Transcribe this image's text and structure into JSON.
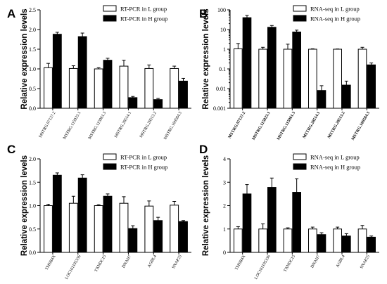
{
  "chart_data": [
    {
      "panel": "A",
      "type": "bar",
      "ylabel": "Relative expression levels",
      "ylim": [
        0,
        2.5
      ],
      "yticks": [
        "0.0",
        "0.5",
        "1.0",
        "1.5",
        "2.0",
        "2.5"
      ],
      "scale": "linear",
      "categories": [
        "MSTRG.97137.2",
        "MSTRG.115923.1",
        "MSTRG.115961.3",
        "MSTRG.28514.1",
        "MSTRG.28513.2",
        "MSTRG.100584.3"
      ],
      "series": [
        {
          "name": "RT-PCR in L group",
          "color": "#ffffff",
          "values": [
            1.03,
            1.01,
            1.0,
            1.07,
            1.01,
            1.01
          ],
          "errors": [
            0.11,
            0.07,
            0.03,
            0.15,
            0.09,
            0.06
          ]
        },
        {
          "name": "RT-PCR in H group",
          "color": "#000000",
          "values": [
            1.88,
            1.82,
            1.22,
            0.27,
            0.22,
            0.69
          ],
          "errors": [
            0.05,
            0.09,
            0.05,
            0.03,
            0.03,
            0.07
          ]
        }
      ]
    },
    {
      "panel": "B",
      "type": "bar",
      "ylabel": "Relative expression levels",
      "ylim": [
        0.001,
        100
      ],
      "yticks": [
        "0.001",
        "0.01",
        "0.1",
        "1",
        "10",
        "100"
      ],
      "scale": "log",
      "categories": [
        "MSTRG.97137.2",
        "MSTRG.115923.1",
        "MSTRG.115961.3",
        "MSTRG.28514.1",
        "MSTRG.28513.2",
        "MSTRG.100584.3"
      ],
      "bold_categories": true,
      "series": [
        {
          "name": "RNA-seq in L group",
          "color": "#ffffff",
          "values": [
            1.05,
            1.0,
            1.0,
            1.0,
            1.0,
            1.0
          ],
          "errors": [
            0.9,
            0.25,
            0.8,
            0.05,
            0.03,
            0.25
          ]
        },
        {
          "name": "RNA-seq in H group",
          "color": "#000000",
          "values": [
            40,
            13,
            7.5,
            0.008,
            0.015,
            0.16
          ],
          "errors": [
            12,
            3,
            1.8,
            0.006,
            0.009,
            0.04
          ]
        }
      ]
    },
    {
      "panel": "C",
      "type": "bar",
      "ylabel": "Relative expression levels",
      "ylim": [
        0,
        2.0
      ],
      "yticks": [
        "0.0",
        "0.5",
        "1.0",
        "1.5",
        "2.0"
      ],
      "scale": "linear",
      "categories": [
        "TMSB4X",
        "LOC101105336",
        "TXNDC15",
        "DNAH7",
        "AGBL4",
        "SNAP25"
      ],
      "series": [
        {
          "name": "RT-PCR in L group",
          "color": "#ffffff",
          "values": [
            1.0,
            1.05,
            1.0,
            1.05,
            0.99,
            1.01
          ],
          "errors": [
            0.03,
            0.15,
            0.02,
            0.14,
            0.11,
            0.08
          ]
        },
        {
          "name": "RT-PCR in H group",
          "color": "#000000",
          "values": [
            1.65,
            1.59,
            1.2,
            0.51,
            0.68,
            0.66
          ],
          "errors": [
            0.05,
            0.07,
            0.05,
            0.06,
            0.07,
            0.02
          ]
        }
      ]
    },
    {
      "panel": "D",
      "type": "bar",
      "ylabel": "Relative expression levels",
      "ylim": [
        0,
        4
      ],
      "yticks": [
        "0",
        "1",
        "2",
        "3",
        "4"
      ],
      "scale": "linear",
      "categories": [
        "TMSB4X",
        "LOC101105336",
        "TXNDC15",
        "DNAH7",
        "AGBL4",
        "SNAP25"
      ],
      "series": [
        {
          "name": "RNA-seq in L group",
          "color": "#ffffff",
          "values": [
            1.0,
            1.0,
            1.0,
            1.0,
            1.0,
            1.0
          ],
          "errors": [
            0.1,
            0.22,
            0.05,
            0.08,
            0.08,
            0.15
          ]
        },
        {
          "name": "RNA-seq in H group",
          "color": "#000000",
          "values": [
            2.5,
            2.78,
            2.57,
            0.76,
            0.7,
            0.65
          ],
          "errors": [
            0.4,
            0.4,
            0.58,
            0.08,
            0.1,
            0.05
          ]
        }
      ]
    }
  ]
}
